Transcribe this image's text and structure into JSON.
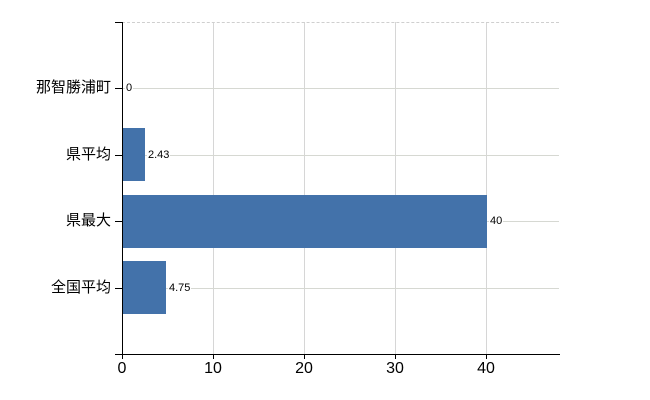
{
  "chart_data": {
    "type": "bar",
    "orientation": "horizontal",
    "title": "",
    "categories": [
      "那智勝浦町",
      "県平均",
      "県最大",
      "全国平均"
    ],
    "values": [
      0,
      2.43,
      40,
      4.75
    ],
    "value_labels": [
      "0",
      "2.43",
      "40",
      "4.75"
    ],
    "x_ticks": [
      0,
      10,
      20,
      30,
      40
    ],
    "x_tick_labels": [
      "0",
      "10",
      "20",
      "30",
      "40"
    ],
    "xlim": [
      0,
      48
    ],
    "grid": true,
    "legend": "none",
    "colors": {
      "bar": "#4372aa",
      "gridline": "#d6d6d6",
      "plot_border_dashed": "#cfcfcf",
      "axis": "#000000",
      "text": "#000000",
      "background": "#ffffff"
    }
  }
}
